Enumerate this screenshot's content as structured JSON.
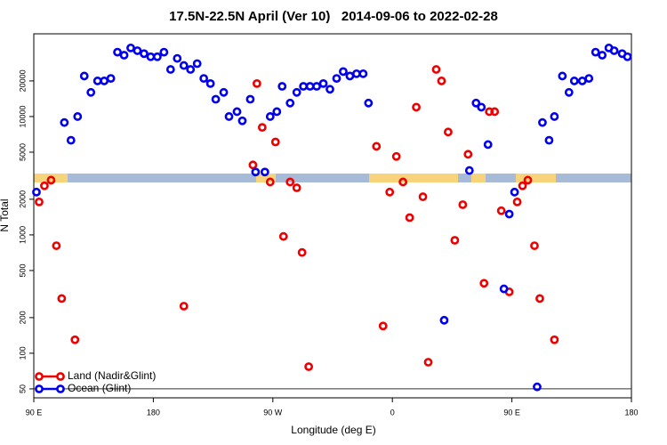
{
  "chart_data": {
    "type": "scatter",
    "title": "17.5N-22.5N April (Ver 10)   2014-09-06 to 2022-02-28",
    "x_label": "Longitude (deg E)",
    "y_label": "N Total",
    "log_y": true,
    "legend": "bottom-left",
    "hline": 50,
    "xlim": [
      90,
      540
    ],
    "ylim": [
      42,
      50000
    ],
    "xticks": [
      {
        "value": 90,
        "label": "90 E"
      },
      180,
      {
        "value": 270,
        "label": "90 W"
      },
      {
        "value": 360,
        "label": "0"
      },
      {
        "value": 450,
        "label": "90 E"
      },
      {
        "value": 540,
        "label": "180"
      }
    ],
    "yticks": [
      50,
      100,
      200,
      500,
      1000,
      2000,
      5000,
      10000,
      20000
    ],
    "series": [
      {
        "name": "Land (Nadir&Glint)",
        "color": "#ee0000",
        "x": [
          94,
          98,
          103,
          107,
          111,
          121,
          203,
          255,
          258,
          262,
          268,
          272,
          278,
          283,
          288,
          292,
          297,
          348,
          353,
          358,
          363,
          368,
          373,
          378,
          383,
          387,
          393,
          397,
          402,
          407,
          413,
          417,
          429,
          433,
          437,
          442,
          448,
          454,
          458,
          462,
          467,
          471,
          482
        ],
        "values": [
          1900,
          2600,
          2900,
          810,
          290,
          130,
          250,
          3900,
          19000,
          8100,
          2800,
          6100,
          970,
          2800,
          2500,
          710,
          77,
          5600,
          170,
          2300,
          4600,
          2800,
          1400,
          12000,
          2100,
          84,
          25000,
          20000,
          7400,
          900,
          1800,
          4800,
          390,
          11000,
          11000,
          1600,
          330,
          1900,
          2600,
          2900,
          810,
          290,
          130
        ]
      },
      {
        "name": "Ocean (Glint)",
        "color": "#0000ee",
        "x": [
          92,
          113,
          118,
          123,
          128,
          133,
          138,
          143,
          148,
          153,
          158,
          163,
          168,
          173,
          178,
          183,
          188,
          193,
          198,
          203,
          208,
          213,
          218,
          223,
          227,
          233,
          237,
          243,
          247,
          253,
          257,
          264,
          268,
          273,
          277,
          283,
          288,
          293,
          298,
          303,
          308,
          313,
          318,
          323,
          328,
          333,
          338,
          342,
          399,
          418,
          423,
          427,
          432,
          444,
          448,
          452,
          469,
          473,
          478,
          482,
          488,
          493,
          497,
          503,
          508,
          513,
          518,
          523,
          527,
          533,
          537
        ],
        "values": [
          2300,
          8900,
          6300,
          10000,
          22000,
          16000,
          20000,
          20000,
          21000,
          35000,
          33000,
          38000,
          36000,
          34000,
          32000,
          32000,
          35000,
          25000,
          31000,
          27000,
          25000,
          28000,
          21000,
          19000,
          14000,
          16000,
          10000,
          11000,
          9200,
          14000,
          3400,
          3400,
          10000,
          11000,
          18000,
          13000,
          16000,
          18000,
          18000,
          18000,
          19000,
          17000,
          21000,
          24000,
          22000,
          23000,
          23000,
          13000,
          190,
          3500,
          13000,
          12000,
          5800,
          350,
          1500,
          2300,
          52,
          8900,
          6300,
          10000,
          22000,
          16000,
          20000,
          20000,
          21000,
          35000,
          33000,
          38000,
          36000,
          34000,
          32000
        ]
      }
    ]
  }
}
